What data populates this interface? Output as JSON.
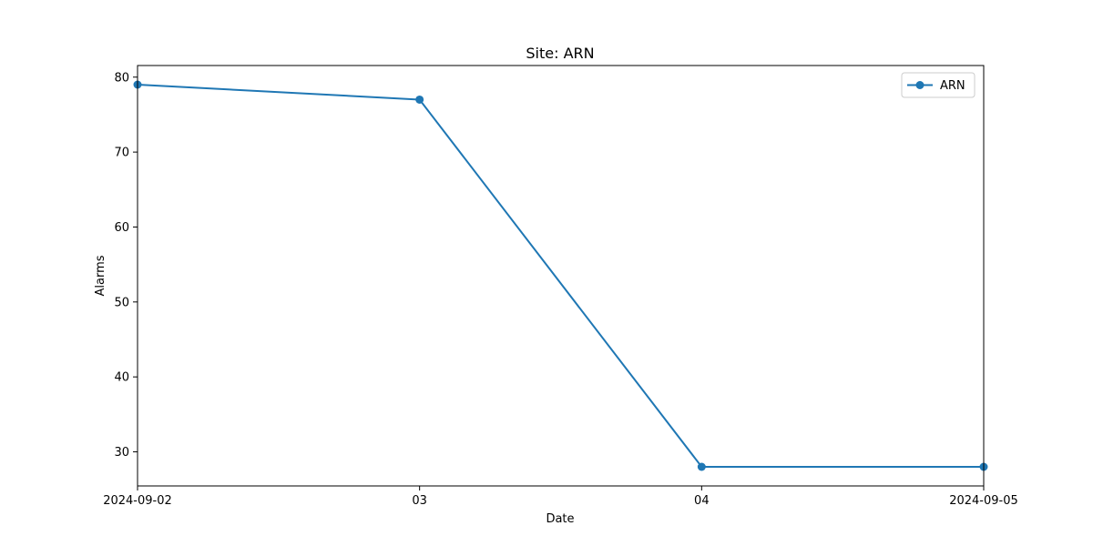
{
  "chart_data": {
    "type": "line",
    "title": "Site: ARN",
    "xlabel": "Date",
    "ylabel": "Alarms",
    "x": [
      "2024-09-02",
      "2024-09-03",
      "2024-09-04",
      "2024-09-05"
    ],
    "x_tick_labels": [
      "2024-09-02",
      "03",
      "04",
      "2024-09-05"
    ],
    "y_ticks": [
      30,
      40,
      50,
      60,
      70,
      80
    ],
    "ylim": [
      25.45,
      81.55
    ],
    "xlim": [
      "2024-09-02",
      "2024-09-05"
    ],
    "grid": false,
    "legend_position": "top-right",
    "series": [
      {
        "name": "ARN",
        "values": [
          79,
          77,
          28,
          28
        ],
        "color": "#1f77b4",
        "marker": "circle"
      }
    ]
  }
}
